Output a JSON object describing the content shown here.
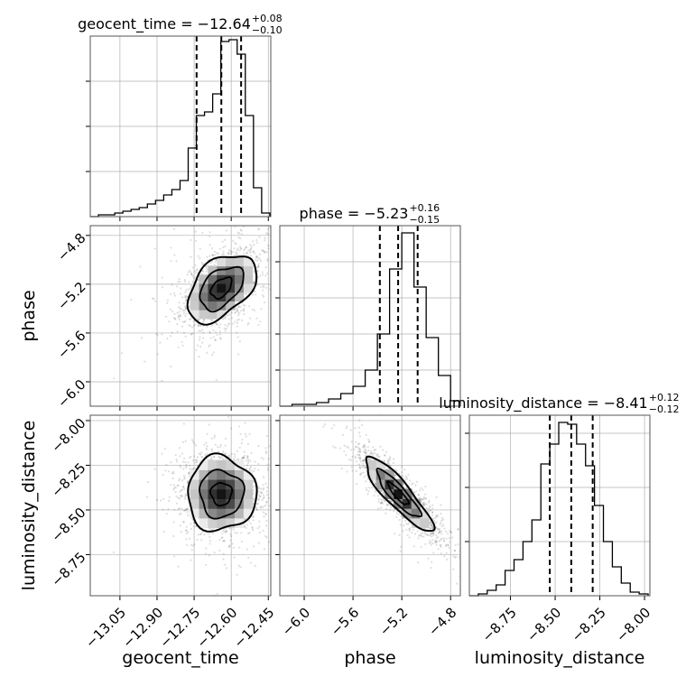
{
  "chart_data": {
    "type": "corner",
    "parameters": [
      "geocent_time",
      "phase",
      "luminosity_distance"
    ],
    "grid": true,
    "panels": [
      {
        "kind": "hist",
        "param": "geocent_time",
        "title_main": "geocent_time = −12.64",
        "title_sup": "+0.08",
        "title_sub": "−0.10",
        "xlim": [
          -13.17,
          -12.44
        ],
        "ylim": [
          0,
          1.0
        ],
        "bin_edges": [
          -13.17,
          -13.137,
          -13.104,
          -13.071,
          -13.038,
          -13.005,
          -12.972,
          -12.939,
          -12.906,
          -12.873,
          -12.84,
          -12.807,
          -12.774,
          -12.741,
          -12.708,
          -12.675,
          -12.642,
          -12.609,
          -12.576,
          -12.543,
          -12.51,
          -12.477,
          -12.444
        ],
        "counts": [
          0.0,
          0.01,
          0.01,
          0.02,
          0.03,
          0.04,
          0.05,
          0.07,
          0.09,
          0.12,
          0.15,
          0.2,
          0.38,
          0.56,
          0.58,
          0.68,
          0.97,
          0.98,
          0.9,
          0.56,
          0.16,
          0.02
        ],
        "quantile_lines": [
          -12.74,
          -12.64,
          -12.56
        ],
        "yticks": [
          0.25,
          0.5,
          0.75
        ]
      },
      {
        "kind": "hist",
        "param": "phase",
        "title_main": "phase = −5.23",
        "title_sup": "+0.16",
        "title_sub": "−0.15",
        "xlim": [
          -6.2,
          -4.72
        ],
        "ylim": [
          0,
          1.0
        ],
        "bin_edges": [
          -6.2,
          -6.1,
          -6.0,
          -5.9,
          -5.8,
          -5.7,
          -5.6,
          -5.5,
          -5.4,
          -5.3,
          -5.2,
          -5.1,
          -5.0,
          -4.9,
          -4.8,
          -4.72
        ],
        "counts": [
          0.0,
          0.01,
          0.01,
          0.02,
          0.04,
          0.07,
          0.11,
          0.2,
          0.4,
          0.76,
          0.96,
          0.66,
          0.38,
          0.17,
          0.03
        ],
        "quantile_lines": [
          -5.38,
          -5.23,
          -5.07
        ],
        "yticks": [
          0.2,
          0.4,
          0.6,
          0.8
        ]
      },
      {
        "kind": "hist",
        "param": "luminosity_distance",
        "title_main": "luminosity_distance = −8.41",
        "title_sup": "+0.12",
        "title_sub": "−0.12",
        "xlim": [
          -8.98,
          -7.97
        ],
        "ylim": [
          0,
          1.0
        ],
        "bin_edges": [
          -8.98,
          -8.93,
          -8.88,
          -8.83,
          -8.78,
          -8.73,
          -8.68,
          -8.63,
          -8.58,
          -8.53,
          -8.48,
          -8.43,
          -8.38,
          -8.33,
          -8.28,
          -8.23,
          -8.18,
          -8.13,
          -8.08,
          -8.03,
          -7.98
        ],
        "counts": [
          0.0,
          0.01,
          0.03,
          0.06,
          0.14,
          0.2,
          0.3,
          0.42,
          0.73,
          0.84,
          0.96,
          0.95,
          0.84,
          0.72,
          0.5,
          0.3,
          0.16,
          0.07,
          0.02,
          0.01
        ],
        "quantile_lines": [
          -8.53,
          -8.41,
          -8.29
        ],
        "yticks": [
          0.3,
          0.6,
          0.9
        ]
      },
      {
        "kind": "scatter2d",
        "xparam": "geocent_time",
        "yparam": "phase",
        "xlim": [
          -13.17,
          -12.44
        ],
        "ylim": [
          -6.2,
          -4.72
        ],
        "center": [
          -12.64,
          -5.23
        ],
        "sigma": [
          0.08,
          0.16
        ],
        "rho": 0.45,
        "n_points": 1400,
        "contour_scales": [
          0.5,
          1.05,
          1.65
        ]
      },
      {
        "kind": "scatter2d",
        "xparam": "geocent_time",
        "yparam": "luminosity_distance",
        "xlim": [
          -13.17,
          -12.44
        ],
        "ylim": [
          -8.98,
          -7.97
        ],
        "center": [
          -12.64,
          -8.41
        ],
        "sigma": [
          0.08,
          0.12
        ],
        "rho": 0.0,
        "n_points": 1400,
        "contour_scales": [
          0.5,
          1.05,
          1.65
        ]
      },
      {
        "kind": "scatter2d",
        "xparam": "phase",
        "yparam": "luminosity_distance",
        "xlim": [
          -6.2,
          -4.72
        ],
        "ylim": [
          -8.98,
          -7.97
        ],
        "center": [
          -5.23,
          -8.41
        ],
        "sigma": [
          0.16,
          0.12
        ],
        "rho": -0.88,
        "n_points": 1400,
        "contour_scales": [
          0.5,
          1.05,
          1.65
        ]
      }
    ],
    "axes": {
      "x_geocent_time": {
        "label": "geocent_time",
        "ticks": [
          -13.05,
          -12.9,
          -12.75,
          -12.6,
          -12.45
        ],
        "tick_labels": [
          "−13.05",
          "−12.90",
          "−12.75",
          "−12.60",
          "−12.45"
        ]
      },
      "x_phase": {
        "label": "phase",
        "ticks": [
          -6.0,
          -5.6,
          -5.2,
          -4.8
        ],
        "tick_labels": [
          "−6.0",
          "−5.6",
          "−5.2",
          "−4.8"
        ]
      },
      "x_luminosity_distance": {
        "label": "luminosity_distance",
        "ticks": [
          -8.75,
          -8.5,
          -8.25,
          -8.0
        ],
        "tick_labels": [
          "−8.75",
          "−8.50",
          "−8.25",
          "−8.00"
        ]
      },
      "y_phase": {
        "label": "phase",
        "ticks": [
          -6.0,
          -5.6,
          -5.2,
          -4.8
        ],
        "tick_labels": [
          "−6.0",
          "−5.6",
          "−5.2",
          "−4.8"
        ]
      },
      "y_luminosity_distance": {
        "label": "luminosity_distance",
        "ticks": [
          -8.75,
          -8.5,
          -8.25,
          -8.0
        ],
        "tick_labels": [
          "−8.75",
          "−8.50",
          "−8.25",
          "−8.00"
        ]
      }
    }
  }
}
